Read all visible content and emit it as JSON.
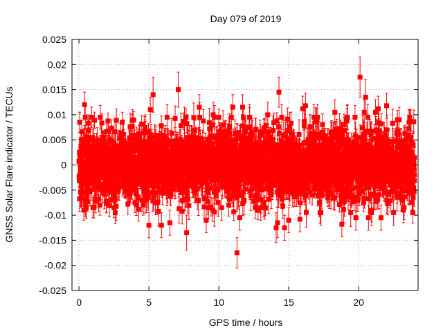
{
  "chart_data": {
    "type": "scatter",
    "title": "Day 079 of 2019",
    "xlabel": "GPS time / hours",
    "ylabel": "GNSS Solar Flare indicator / TECUs",
    "xlim": [
      -0.5,
      24.25
    ],
    "ylim": [
      -0.025,
      0.025
    ],
    "x_ticks": [
      {
        "value": 0,
        "label": "0"
      },
      {
        "value": 5,
        "label": "5"
      },
      {
        "value": 10,
        "label": "10"
      },
      {
        "value": 15,
        "label": "15"
      },
      {
        "value": 20,
        "label": "20"
      }
    ],
    "y_ticks": [
      {
        "value": -0.025,
        "label": "-0.025"
      },
      {
        "value": -0.02,
        "label": "-0.02"
      },
      {
        "value": -0.015,
        "label": "-0.015"
      },
      {
        "value": -0.01,
        "label": "-0.01"
      },
      {
        "value": -0.005,
        "label": "-0.005"
      },
      {
        "value": 0,
        "label": "0"
      },
      {
        "value": 0.005,
        "label": "0.005"
      },
      {
        "value": 0.01,
        "label": "0.01"
      },
      {
        "value": 0.015,
        "label": "0.015"
      },
      {
        "value": 0.02,
        "label": "0.02"
      },
      {
        "value": 0.025,
        "label": "0.025"
      }
    ],
    "grid": true,
    "series": [
      {
        "name": "GNSS Solar Flare indicator",
        "color": "#ff0000",
        "error_bars": true,
        "noise": {
          "x_start": 0,
          "x_end": 24,
          "count": 2880,
          "std": 0.0035,
          "error": 0.0025
        },
        "points": [
          {
            "x": 0.05,
            "y": 0.0085,
            "err": 0.002
          },
          {
            "x": 0.15,
            "y": -0.0065,
            "err": 0.002
          },
          {
            "x": 0.4,
            "y": 0.012,
            "err": 0.0025
          },
          {
            "x": 0.45,
            "y": 0.0095,
            "err": 0.0025
          },
          {
            "x": 0.35,
            "y": -0.009,
            "err": 0.002
          },
          {
            "x": 0.9,
            "y": 0.0095,
            "err": 0.002
          },
          {
            "x": 1.0,
            "y": -0.0085,
            "err": 0.002
          },
          {
            "x": 1.5,
            "y": -0.008,
            "err": 0.002
          },
          {
            "x": 2.5,
            "y": -0.0085,
            "err": 0.002
          },
          {
            "x": 3.1,
            "y": 0.0085,
            "err": 0.002
          },
          {
            "x": 3.5,
            "y": -0.0078,
            "err": 0.002
          },
          {
            "x": 4.0,
            "y": -0.0075,
            "err": 0.002
          },
          {
            "x": 4.6,
            "y": -0.008,
            "err": 0.002
          },
          {
            "x": 5.0,
            "y": -0.012,
            "err": 0.0025
          },
          {
            "x": 5.1,
            "y": 0.011,
            "err": 0.0025
          },
          {
            "x": 5.3,
            "y": 0.014,
            "err": 0.0035
          },
          {
            "x": 5.9,
            "y": -0.012,
            "err": 0.0025
          },
          {
            "x": 6.3,
            "y": 0.0095,
            "err": 0.0025
          },
          {
            "x": 6.5,
            "y": -0.0115,
            "err": 0.0025
          },
          {
            "x": 7.1,
            "y": 0.015,
            "err": 0.0035
          },
          {
            "x": 7.7,
            "y": -0.0135,
            "err": 0.0035
          },
          {
            "x": 8.6,
            "y": 0.0115,
            "err": 0.0025
          },
          {
            "x": 9.1,
            "y": -0.011,
            "err": 0.0025
          },
          {
            "x": 9.6,
            "y": 0.01,
            "err": 0.0025
          },
          {
            "x": 10.2,
            "y": -0.0085,
            "err": 0.0025
          },
          {
            "x": 10.9,
            "y": 0.0095,
            "err": 0.0025
          },
          {
            "x": 11.0,
            "y": 0.0115,
            "err": 0.0025
          },
          {
            "x": 11.3,
            "y": -0.0175,
            "err": 0.003
          },
          {
            "x": 11.5,
            "y": -0.0105,
            "err": 0.0025
          },
          {
            "x": 11.7,
            "y": 0.0115,
            "err": 0.0025
          },
          {
            "x": 12.2,
            "y": 0.0095,
            "err": 0.0025
          },
          {
            "x": 13.0,
            "y": -0.0085,
            "err": 0.0025
          },
          {
            "x": 13.5,
            "y": 0.01,
            "err": 0.0025
          },
          {
            "x": 14.1,
            "y": -0.0125,
            "err": 0.003
          },
          {
            "x": 14.2,
            "y": -0.0115,
            "err": 0.003
          },
          {
            "x": 14.3,
            "y": 0.0145,
            "err": 0.003
          },
          {
            "x": 14.5,
            "y": 0.0095,
            "err": 0.0025
          },
          {
            "x": 14.7,
            "y": -0.0125,
            "err": 0.0025
          },
          {
            "x": 15.0,
            "y": -0.011,
            "err": 0.0025
          },
          {
            "x": 15.8,
            "y": -0.0108,
            "err": 0.0025
          },
          {
            "x": 16.0,
            "y": 0.0112,
            "err": 0.0025
          },
          {
            "x": 16.2,
            "y": 0.0118,
            "err": 0.0025
          },
          {
            "x": 16.8,
            "y": 0.0095,
            "err": 0.0025
          },
          {
            "x": 17.3,
            "y": -0.0095,
            "err": 0.0025
          },
          {
            "x": 18.3,
            "y": 0.0105,
            "err": 0.0025
          },
          {
            "x": 18.8,
            "y": -0.0118,
            "err": 0.0025
          },
          {
            "x": 19.2,
            "y": 0.0095,
            "err": 0.0025
          },
          {
            "x": 19.8,
            "y": -0.0105,
            "err": 0.0025
          },
          {
            "x": 20.1,
            "y": 0.0175,
            "err": 0.004
          },
          {
            "x": 20.4,
            "y": 0.0105,
            "err": 0.0025
          },
          {
            "x": 20.5,
            "y": 0.0135,
            "err": 0.0035
          },
          {
            "x": 20.7,
            "y": -0.0105,
            "err": 0.0025
          },
          {
            "x": 21.2,
            "y": 0.0105,
            "err": 0.0025
          },
          {
            "x": 21.4,
            "y": 0.0112,
            "err": 0.0025
          },
          {
            "x": 21.6,
            "y": -0.0105,
            "err": 0.0025
          },
          {
            "x": 22.0,
            "y": 0.0118,
            "err": 0.0025
          },
          {
            "x": 22.5,
            "y": -0.0095,
            "err": 0.0025
          },
          {
            "x": 22.9,
            "y": 0.009,
            "err": 0.0025
          },
          {
            "x": 23.2,
            "y": -0.009,
            "err": 0.0025
          },
          {
            "x": 23.6,
            "y": 0.0085,
            "err": 0.0025
          },
          {
            "x": 23.9,
            "y": -0.0065,
            "err": 0.0025
          }
        ]
      }
    ]
  }
}
